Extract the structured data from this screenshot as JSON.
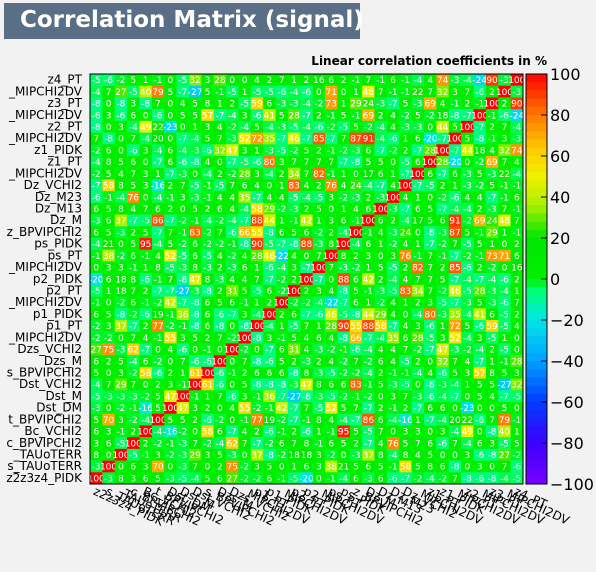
{
  "title": "Correlation Matrix (signal)",
  "subtitle": "Linear correlation coefficients in %",
  "colorbar": {
    "min": -100,
    "max": 100,
    "ticks": [
      100,
      80,
      60,
      40,
      20,
      0,
      -20,
      -40,
      -60,
      -80,
      -100
    ],
    "tick_labels": [
      "100",
      "80",
      "60",
      "40",
      "20",
      "0",
      "−20",
      "−40",
      "−60",
      "−80",
      "−100"
    ]
  },
  "chart_data": {
    "type": "heatmap",
    "title": "Correlation Matrix (signal)",
    "subtitle": "Linear correlation coefficients in %",
    "zlim": [
      -100,
      100
    ],
    "y_labels_top_to_bottom": [
      "z4_PT",
      "_MIPCHI2DV",
      "z3_PT",
      "_MIPCHI2DV",
      "z2_PT",
      "_MIPCHI2DV",
      "z1_PIDK",
      "z1_PT",
      "_MIPCHI2DV",
      "Dz_VCHI2",
      "Dz_M23",
      "Dz_M13",
      "Dz_M",
      "z_BPVIPCHI2",
      "ps_PIDK",
      "ps_PT",
      "_MIPCHI2DV",
      "p2_PIDK",
      "p2_PT",
      "_MIPCHI2DV",
      "p1_PIDK",
      "p1_PT",
      "_MIPCHI2DV",
      "Dzs_VCHI2",
      "Dzs_M",
      "s_BPVIPCHI2",
      "Dst_VCHI2",
      "Dst_M",
      "Dst_DM",
      "t_BPVIPCHI2",
      "Bc_VCHI2",
      "c_BPVIPCHI2",
      "_TAUoTERR",
      "s_TAUoTERR",
      "z2z3z4_PIDK"
    ],
    "notes": "35x35 correlation matrix; dominant off-diagonal structures visible as diagonal band (100 on diagonal) plus strong IPCHI2/TAU blocks."
  }
}
